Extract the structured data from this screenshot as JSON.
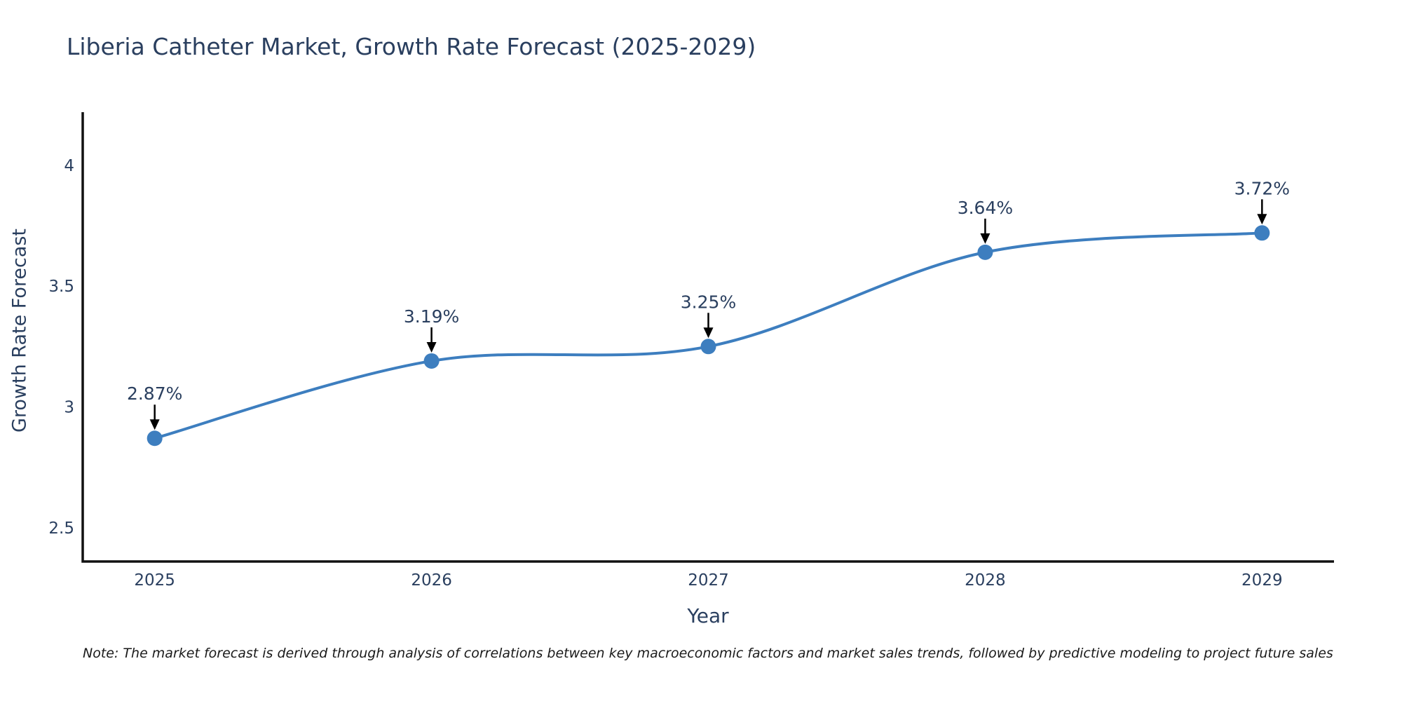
{
  "chart_data": {
    "type": "line",
    "title": "Liberia Catheter Market, Growth Rate Forecast (2025-2029)",
    "xlabel": "Year",
    "ylabel": "Growth Rate Forecast",
    "x": [
      2025,
      2026,
      2027,
      2028,
      2029
    ],
    "y": [
      2.87,
      3.19,
      3.25,
      3.64,
      3.72
    ],
    "point_labels": [
      "2.87%",
      "3.19%",
      "3.25%",
      "3.64%",
      "3.72%"
    ],
    "xticks": {
      "values": [
        2025,
        2026,
        2027,
        2028,
        2029
      ],
      "labels": [
        "2025",
        "2026",
        "2027",
        "2028",
        "2029"
      ]
    },
    "yticks": {
      "values": [
        2.5,
        3,
        3.5,
        4
      ],
      "labels": [
        "2.5",
        "3",
        "3.5",
        "4"
      ]
    },
    "xlim": [
      2024.74,
      2029.26
    ],
    "ylim": [
      2.36,
      4.22
    ],
    "line_shape": "spline",
    "grid": "off",
    "legend": "none",
    "colors": {
      "line": "#3d7ebf",
      "marker": "#3d7ebf",
      "annotation_arrow": "#000000",
      "text": "#2a3f5f",
      "axis_line": "#111111"
    }
  },
  "note": "Note: The market forecast is derived through analysis of correlations between key macroeconomic factors and market sales trends, followed by predictive modeling to project future sales"
}
